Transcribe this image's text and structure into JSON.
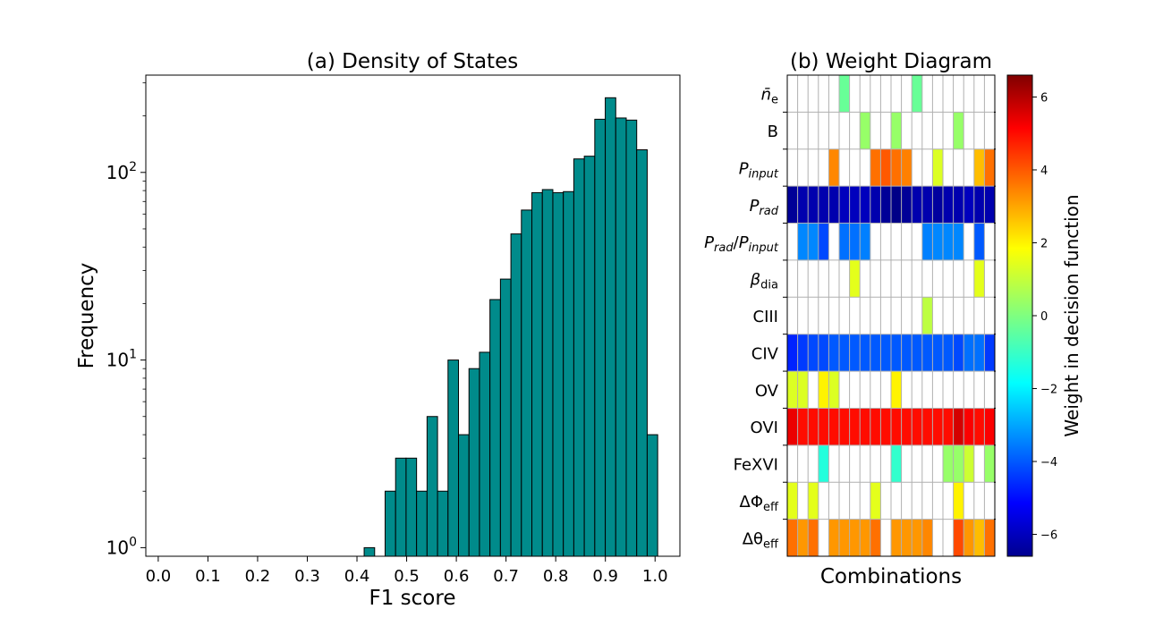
{
  "chart_data": [
    {
      "type": "bar",
      "title": "(a) Density of States",
      "xlabel": "F1 score",
      "ylabel": "Frequency",
      "y_scale": "log",
      "bar_color": "#008b8b",
      "edge_color": "#000000",
      "xlim": [
        -0.025,
        1.05
      ],
      "ylim": [
        0.9,
        330
      ],
      "x_ticks": [
        "0.0",
        "0.1",
        "0.2",
        "0.3",
        "0.4",
        "0.5",
        "0.6",
        "0.7",
        "0.8",
        "0.9",
        "1.0"
      ],
      "y_ticks": [
        {
          "value": 1,
          "base": "10",
          "exp": "0"
        },
        {
          "value": 10,
          "base": "10",
          "exp": "1"
        },
        {
          "value": 100,
          "base": "10",
          "exp": "2"
        }
      ],
      "bin_width": 0.0211,
      "bins": [
        {
          "x": 0.425,
          "value": 1
        },
        {
          "x": 0.4672,
          "value": 2
        },
        {
          "x": 0.4883,
          "value": 3
        },
        {
          "x": 0.5094,
          "value": 3
        },
        {
          "x": 0.5305,
          "value": 2
        },
        {
          "x": 0.5516,
          "value": 5
        },
        {
          "x": 0.5727,
          "value": 2
        },
        {
          "x": 0.5938,
          "value": 10
        },
        {
          "x": 0.6149,
          "value": 4
        },
        {
          "x": 0.636,
          "value": 9
        },
        {
          "x": 0.6571,
          "value": 11
        },
        {
          "x": 0.6782,
          "value": 21
        },
        {
          "x": 0.6993,
          "value": 27
        },
        {
          "x": 0.7204,
          "value": 47
        },
        {
          "x": 0.7415,
          "value": 63
        },
        {
          "x": 0.7626,
          "value": 78
        },
        {
          "x": 0.7837,
          "value": 81
        },
        {
          "x": 0.8048,
          "value": 78
        },
        {
          "x": 0.8259,
          "value": 79
        },
        {
          "x": 0.847,
          "value": 118
        },
        {
          "x": 0.8681,
          "value": 122
        },
        {
          "x": 0.8892,
          "value": 192
        },
        {
          "x": 0.9103,
          "value": 250
        },
        {
          "x": 0.9314,
          "value": 195
        },
        {
          "x": 0.9525,
          "value": 190
        },
        {
          "x": 0.9736,
          "value": 132
        },
        {
          "x": 0.9947,
          "value": 4
        }
      ]
    },
    {
      "type": "heatmap",
      "title": "(b) Weight Diagram",
      "xlabel": "Combinations",
      "colorbar_label": "Weight in decision function",
      "colormap": "jet",
      "vmin": -6.6,
      "vmax": 6.6,
      "colorbar_ticks": [
        "−6",
        "−4",
        "−2",
        "0",
        "2",
        "4",
        "6"
      ],
      "colorbar_tick_values": [
        -6,
        -4,
        -2,
        0,
        2,
        4,
        6
      ],
      "n_columns": 20,
      "rows": [
        {
          "base": "n̄",
          "sub": "e",
          "sub_italic": false,
          "cells": [
            null,
            null,
            null,
            null,
            null,
            -0.3,
            null,
            null,
            null,
            null,
            null,
            null,
            -0.3,
            null,
            null,
            null,
            null,
            null,
            null,
            null
          ]
        },
        {
          "base": "B",
          "cells": [
            null,
            null,
            null,
            null,
            null,
            null,
            null,
            0.3,
            null,
            null,
            0.3,
            null,
            null,
            null,
            null,
            null,
            0.3,
            null,
            null,
            null
          ]
        },
        {
          "base": "P",
          "sub": "input",
          "sub_italic": true,
          "cells": [
            null,
            null,
            null,
            null,
            3.2,
            null,
            null,
            null,
            3.5,
            3.8,
            3.5,
            3.3,
            null,
            null,
            1.2,
            null,
            null,
            null,
            2.5,
            3.5
          ]
        },
        {
          "base": "P",
          "sub": "rad",
          "sub_italic": true,
          "cells": [
            -6.3,
            -6.0,
            -6.0,
            -6.0,
            -6.0,
            -5.8,
            -5.8,
            -5.8,
            -6.0,
            -6.3,
            -6.5,
            -6.3,
            -6.0,
            -6.0,
            -6.2,
            -6.0,
            -6.0,
            -5.8,
            -6.0,
            -6.0
          ]
        },
        {
          "base": "P_rad/P_input",
          "cells": [
            null,
            -3.2,
            -3.2,
            -4.0,
            null,
            -3.5,
            -3.5,
            -3.3,
            null,
            null,
            null,
            null,
            null,
            -3.3,
            -3.2,
            -3.2,
            -3.2,
            null,
            -3.8,
            null
          ]
        },
        {
          "base": "β",
          "sub": "dia",
          "sub_italic": false,
          "cells": [
            null,
            null,
            null,
            null,
            null,
            null,
            1.3,
            null,
            null,
            null,
            null,
            null,
            null,
            null,
            null,
            null,
            null,
            null,
            1.3,
            null
          ]
        },
        {
          "base": "CIII",
          "cells": [
            null,
            null,
            null,
            null,
            null,
            null,
            null,
            null,
            null,
            null,
            null,
            null,
            null,
            0.8,
            null,
            null,
            null,
            null,
            null,
            null
          ]
        },
        {
          "base": "CIV",
          "cells": [
            -4.5,
            -4.2,
            -4.0,
            -4.0,
            -3.8,
            -3.8,
            -3.8,
            -3.8,
            -3.8,
            -3.8,
            -3.8,
            -3.8,
            -3.8,
            -3.8,
            -3.8,
            -3.8,
            -4.0,
            -3.5,
            -3.5,
            -4.2
          ]
        },
        {
          "base": "OV",
          "cells": [
            1.2,
            1.2,
            null,
            1.8,
            1.2,
            null,
            null,
            null,
            null,
            null,
            1.8,
            null,
            null,
            null,
            null,
            null,
            null,
            null,
            null,
            null
          ]
        },
        {
          "base": "OVI",
          "cells": [
            5.2,
            4.8,
            4.8,
            4.8,
            4.8,
            4.8,
            4.8,
            4.8,
            4.8,
            4.8,
            4.8,
            4.8,
            4.8,
            4.8,
            4.8,
            4.8,
            5.5,
            5.0,
            4.8,
            5.0
          ]
        },
        {
          "base": "FeXVI",
          "cells": [
            null,
            null,
            null,
            -1.2,
            null,
            null,
            null,
            null,
            null,
            null,
            -1.0,
            null,
            null,
            null,
            null,
            0.3,
            0.3,
            1.0,
            null,
            0.3
          ]
        },
        {
          "base": "ΔΦ",
          "sub": "eff",
          "sub_italic": false,
          "cells": [
            1.3,
            null,
            1.3,
            null,
            null,
            null,
            null,
            null,
            1.3,
            null,
            null,
            null,
            null,
            null,
            null,
            null,
            1.8,
            null,
            null,
            null
          ]
        },
        {
          "base": "Δθ",
          "sub": "eff",
          "sub_italic": false,
          "cells": [
            3.5,
            3.0,
            3.5,
            null,
            3.0,
            3.0,
            3.0,
            3.0,
            3.5,
            null,
            3.0,
            3.0,
            3.0,
            3.2,
            null,
            null,
            4.0,
            3.0,
            2.5,
            3.5
          ]
        }
      ]
    }
  ]
}
